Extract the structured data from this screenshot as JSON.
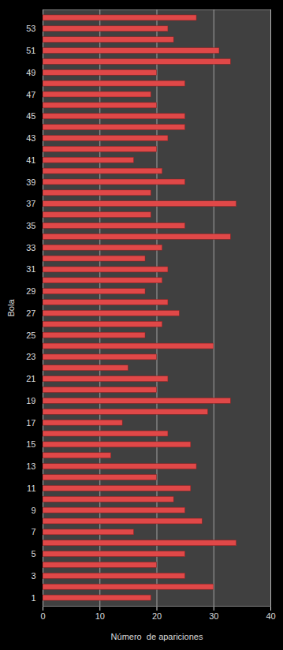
{
  "chart_data": {
    "type": "bar",
    "orientation": "horizontal",
    "x_label": "Número  de apariciones",
    "y_label": "Bola",
    "categories": [
      "1",
      null,
      "3",
      null,
      "5",
      null,
      "7",
      null,
      "9",
      null,
      "11",
      null,
      "13",
      null,
      "15",
      null,
      "17",
      null,
      "19",
      null,
      "21",
      null,
      "23",
      null,
      "25",
      null,
      "27",
      null,
      "29",
      null,
      "31",
      null,
      "33",
      null,
      "35",
      null,
      "37",
      null,
      "39",
      null,
      "41",
      null,
      "43",
      null,
      "45",
      null,
      "47",
      null,
      "49",
      null,
      "51",
      null,
      "53",
      null
    ],
    "values": [
      19,
      30,
      25,
      20,
      25,
      34,
      16,
      28,
      25,
      23,
      26,
      20,
      27,
      12,
      26,
      22,
      14,
      29,
      33,
      20,
      22,
      15,
      20,
      30,
      18,
      21,
      24,
      22,
      18,
      21,
      22,
      18,
      21,
      33,
      25,
      19,
      34,
      19,
      25,
      21,
      16,
      20,
      22,
      25,
      25,
      20,
      19,
      25,
      20,
      33,
      31,
      23,
      22,
      27
    ],
    "color": "#e04848",
    "xlim": [
      0,
      40
    ],
    "xticks": [
      0,
      10,
      20,
      30,
      40
    ],
    "grid": true
  }
}
